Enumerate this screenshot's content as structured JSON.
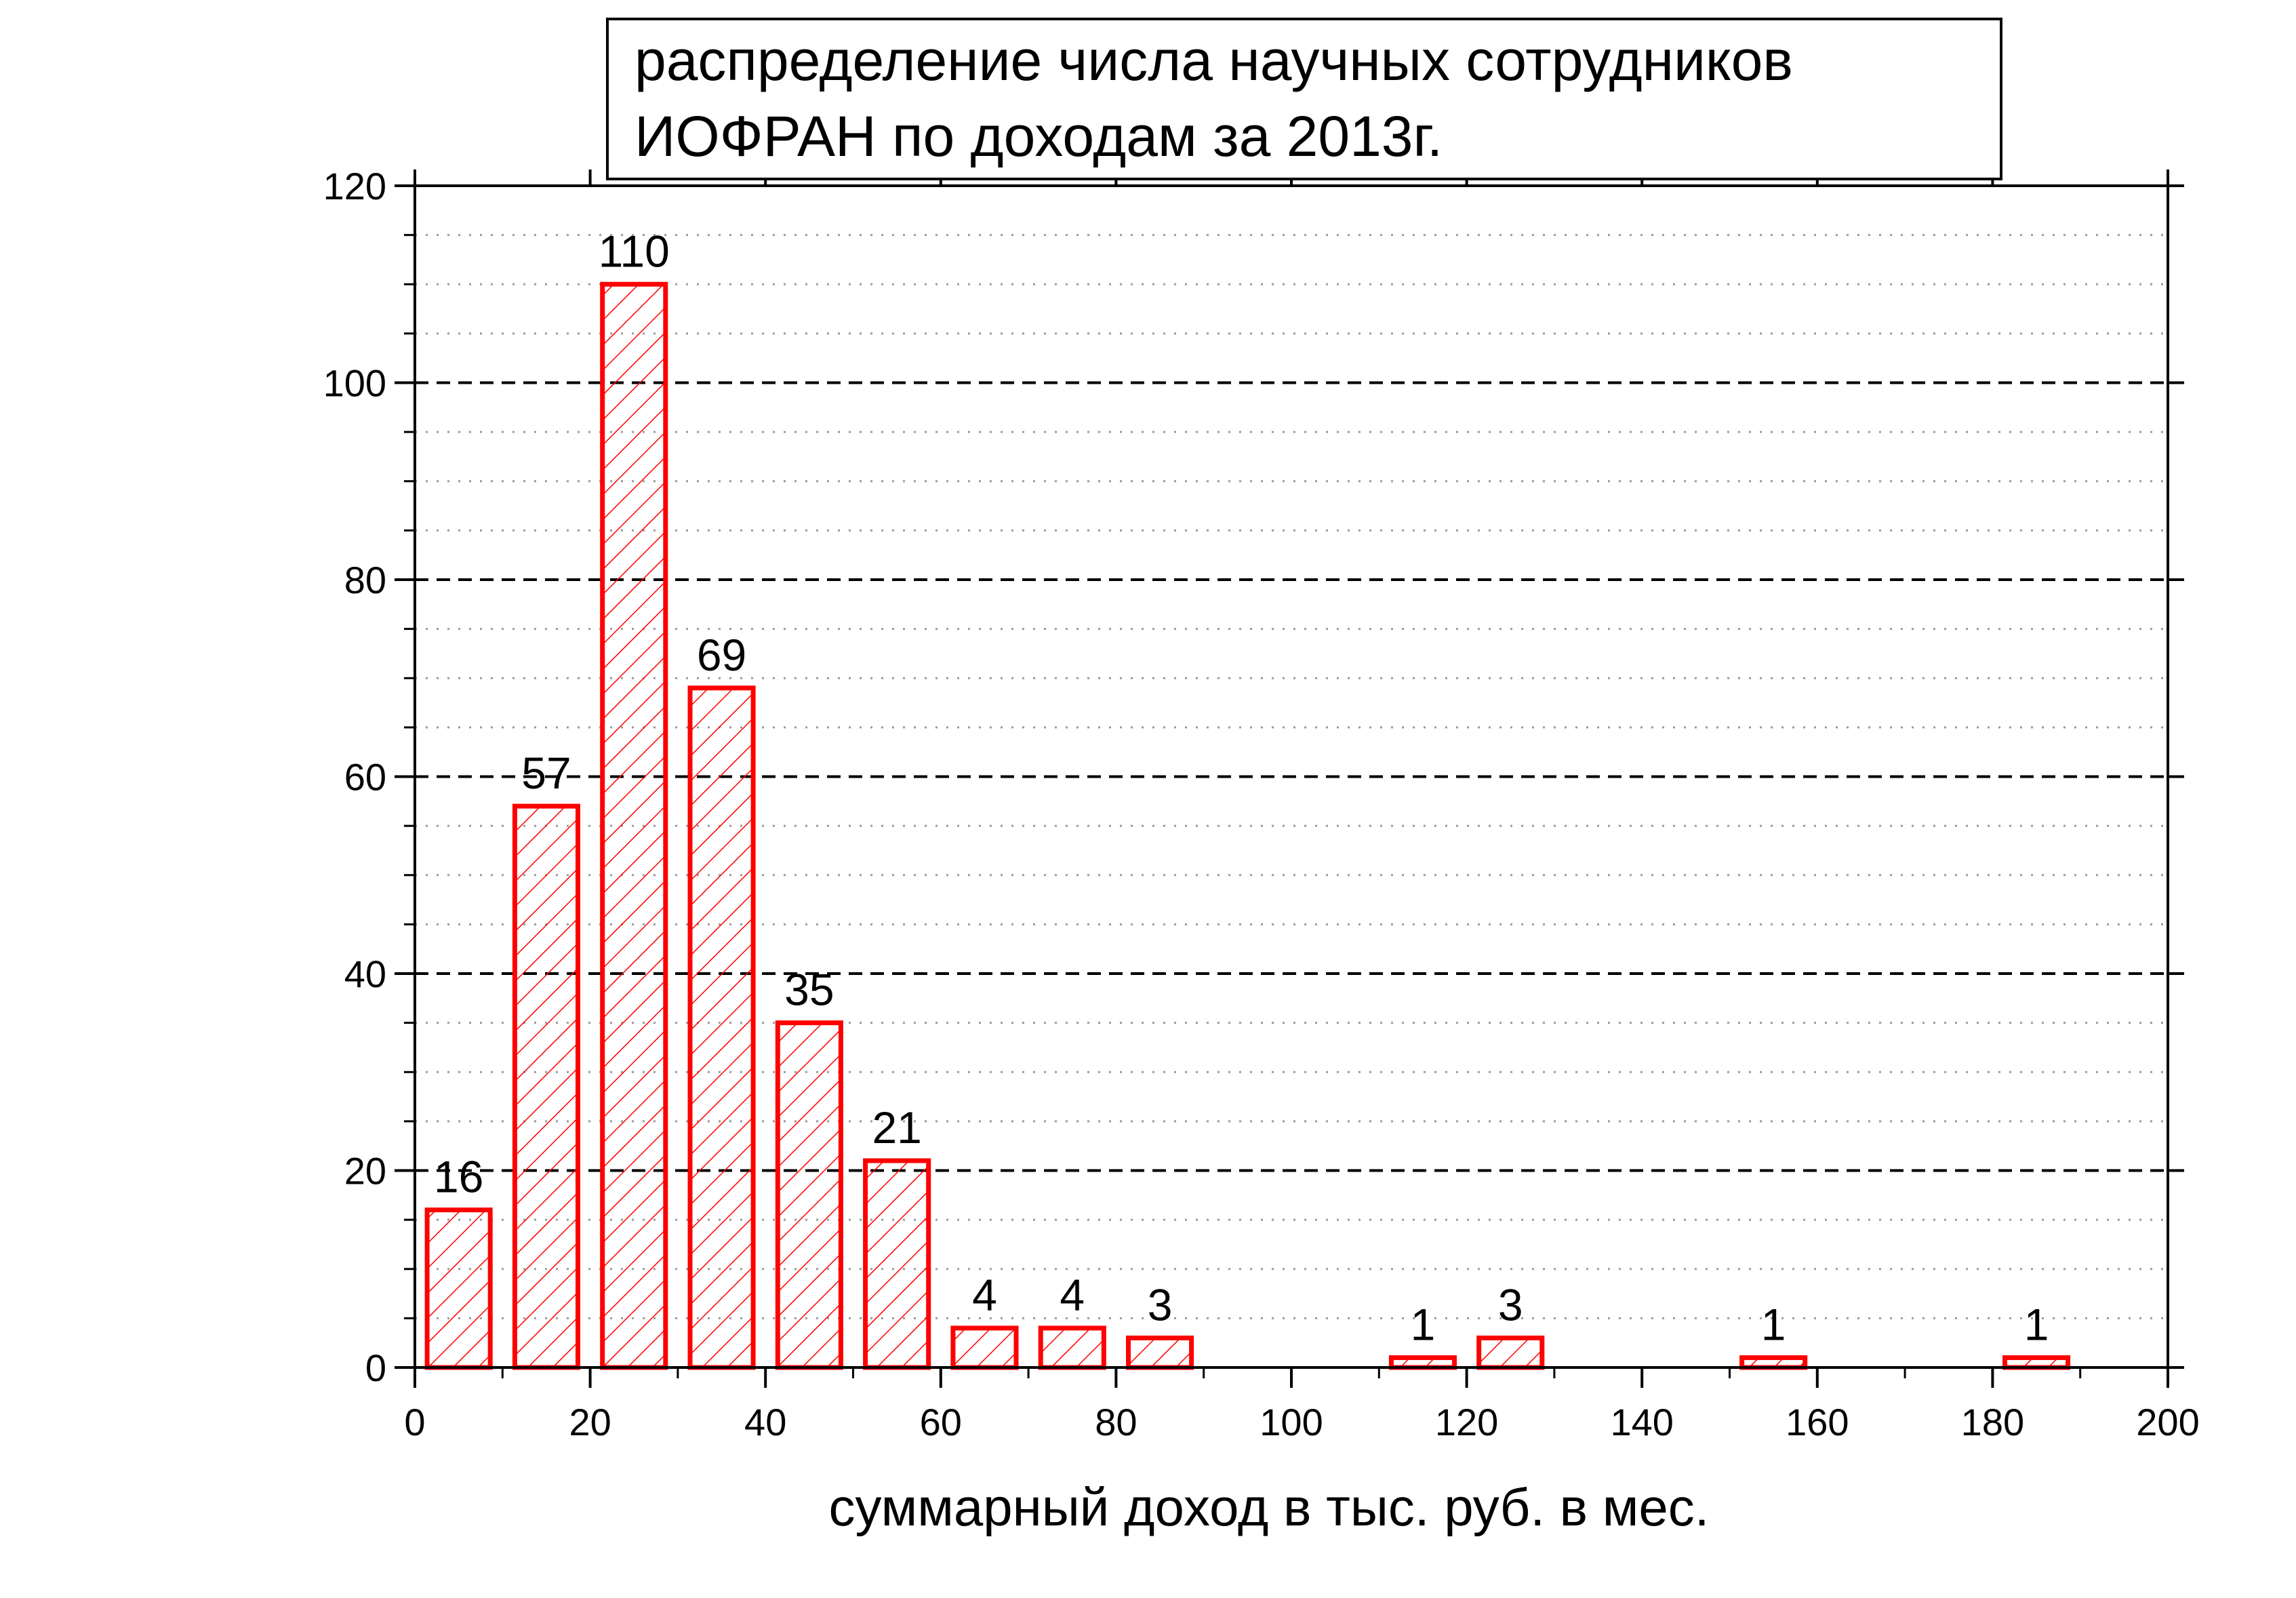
{
  "chart_data": {
    "type": "bar",
    "title_lines": [
      "распределение числа научных сотрудников",
      "ИОФРАН по доходам за 2013г."
    ],
    "xlabel": "суммарный доход в тыс. руб. в мес.",
    "ylabel": "",
    "xlim": [
      0,
      200
    ],
    "ylim": [
      0,
      120
    ],
    "x_ticks": [
      0,
      20,
      40,
      60,
      80,
      100,
      120,
      140,
      160,
      180,
      200
    ],
    "y_ticks": [
      0,
      20,
      40,
      60,
      80,
      100,
      120
    ],
    "bin_width": 10,
    "bar_fill_fraction": 0.72,
    "bars": [
      {
        "x": 5,
        "value": 16
      },
      {
        "x": 15,
        "value": 57
      },
      {
        "x": 25,
        "value": 110
      },
      {
        "x": 35,
        "value": 69
      },
      {
        "x": 45,
        "value": 35
      },
      {
        "x": 55,
        "value": 21
      },
      {
        "x": 65,
        "value": 4
      },
      {
        "x": 75,
        "value": 4
      },
      {
        "x": 85,
        "value": 3
      },
      {
        "x": 115,
        "value": 1
      },
      {
        "x": 125,
        "value": 3
      },
      {
        "x": 155,
        "value": 1
      },
      {
        "x": 185,
        "value": 1
      }
    ],
    "grid": {
      "major_y": "dashed",
      "minor_y": "dotted",
      "minor_step": 5
    },
    "colors": {
      "bar": "#ff0000",
      "grid_major": "#000000",
      "grid_minor": "#9a9a9a"
    }
  }
}
